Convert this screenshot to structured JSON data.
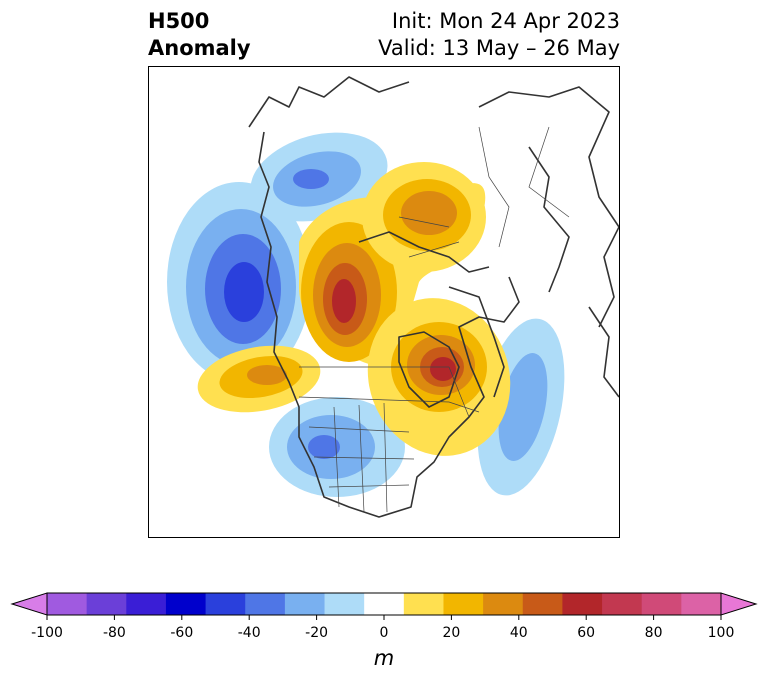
{
  "title": {
    "left_line1": "H500",
    "left_line2": "Anomaly",
    "right_line1": "Init: Mon 24 Apr 2023",
    "right_line2": "Valid: 13 May – 26 May"
  },
  "colorbar": {
    "unit_label": "m",
    "range": [
      -100,
      100
    ],
    "tick_values": [
      -100,
      -80,
      -60,
      -40,
      -20,
      0,
      20,
      40,
      60,
      80,
      100
    ],
    "tick_labels": [
      "-100",
      "-80",
      "-60",
      "-40",
      "-20",
      "0",
      "20",
      "40",
      "60",
      "80",
      "100"
    ],
    "colors": [
      "#d87de8",
      "#a05ae0",
      "#6b3fd8",
      "#3a1ed6",
      "#0000cc",
      "#2a40dc",
      "#4f76e6",
      "#79b0f0",
      "#aedcf8",
      "#ffffff",
      "#ffe050",
      "#f2b600",
      "#dc8a10",
      "#c85a18",
      "#b2262a",
      "#c23850",
      "#d04a78",
      "#dc62a6",
      "#e877d6"
    ],
    "extend": "both"
  },
  "map": {
    "projection": "north-polar-stereographic",
    "features": [
      "coastlines",
      "country-borders",
      "us-state-borders"
    ],
    "anomaly_centers": [
      {
        "region": "Gulf of Alaska",
        "sign": "negative",
        "value_m": -60
      },
      {
        "region": "Bering Strait",
        "sign": "negative",
        "value_m": -40
      },
      {
        "region": "Western US",
        "sign": "negative",
        "value_m": -40
      },
      {
        "region": "Central North Atlantic",
        "sign": "negative",
        "value_m": -30
      },
      {
        "region": "Northern Canada / Arctic",
        "sign": "positive",
        "value_m": 60
      },
      {
        "region": "Hudson Bay / Labrador",
        "sign": "positive",
        "value_m": 60
      },
      {
        "region": "Northern Siberia",
        "sign": "positive",
        "value_m": 40
      },
      {
        "region": "Northeast Pacific",
        "sign": "positive",
        "value_m": 40
      }
    ]
  }
}
